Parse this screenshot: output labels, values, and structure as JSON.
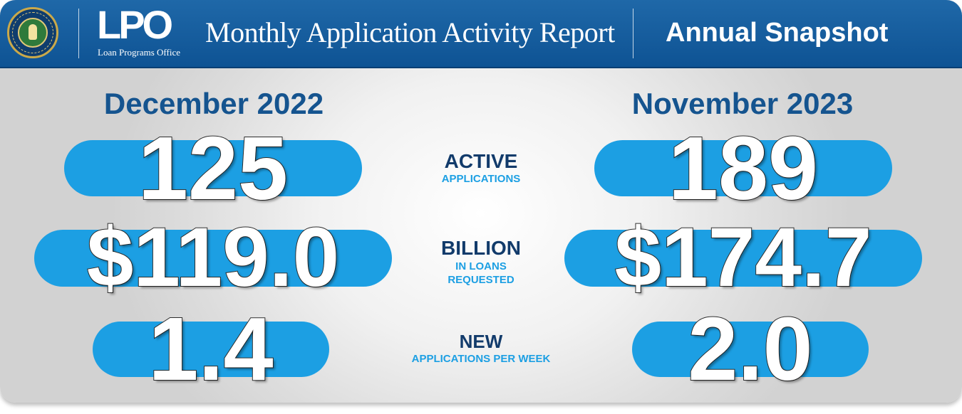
{
  "header": {
    "logo_text": "LPO",
    "logo_subtitle": "Loan Programs Office",
    "report_title": "Monthly Application Activity Report",
    "snapshot_title": "Annual Snapshot",
    "seal_icon": "doe-seal-icon"
  },
  "left": {
    "date": "December 2022",
    "active": "125",
    "billion": "$119.0",
    "new": "1.4"
  },
  "right": {
    "date": "November 2023",
    "active": "189",
    "billion": "$174.7",
    "new": "2.0"
  },
  "labels": {
    "active_title": "ACTIVE",
    "active_sub": "APPLICATIONS",
    "billion_title": "BILLION",
    "billion_sub1": "IN LOANS",
    "billion_sub2": "REQUESTED",
    "new_title": "NEW",
    "new_sub": "APPLICATIONS PER WEEK"
  },
  "colors": {
    "header_blue": "#1565a8",
    "pill_blue": "#1c9fe3",
    "date_blue": "#15548f",
    "label_navy": "#123b6b"
  }
}
